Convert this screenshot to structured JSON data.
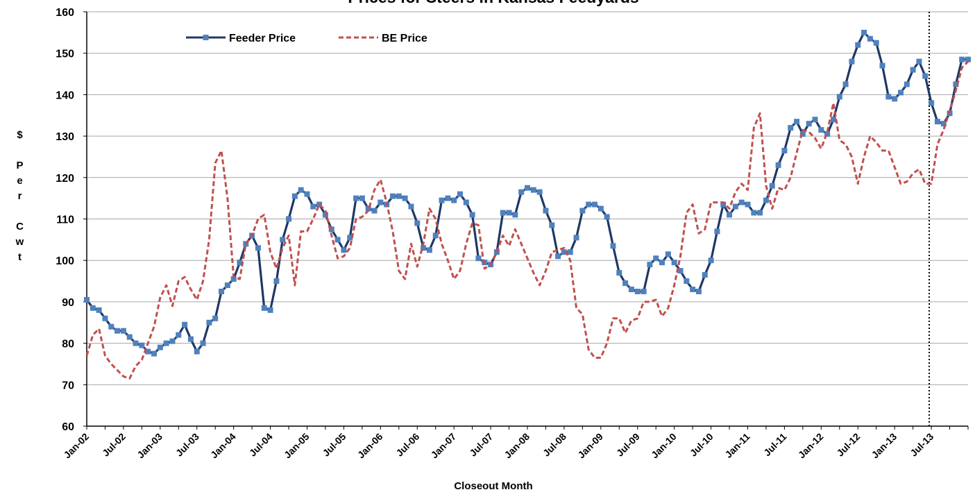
{
  "chart_data": {
    "type": "line",
    "title": "Prices for Steers in Kansas Feedyards",
    "x_label": "Closeout Month",
    "y_label": "$ Per Cwt",
    "ylim": [
      60,
      160
    ],
    "yticks": [
      60,
      70,
      80,
      90,
      100,
      110,
      120,
      130,
      140,
      150,
      160
    ],
    "grid": true,
    "legend": "top-left",
    "categories": [
      "Jan-02",
      null,
      null,
      null,
      null,
      null,
      "Jul-02",
      null,
      null,
      null,
      null,
      null,
      "Jan-03",
      null,
      null,
      null,
      null,
      null,
      "Jul-03",
      null,
      null,
      null,
      null,
      null,
      "Jan-04",
      null,
      null,
      null,
      null,
      null,
      "Jul-04",
      null,
      null,
      null,
      null,
      null,
      "Jan-05",
      null,
      null,
      null,
      null,
      null,
      "Jul-05",
      null,
      null,
      null,
      null,
      null,
      "Jan-06",
      null,
      null,
      null,
      null,
      null,
      "Jul-06",
      null,
      null,
      null,
      null,
      null,
      "Jan-07",
      null,
      null,
      null,
      null,
      null,
      "Jul-07",
      null,
      null,
      null,
      null,
      null,
      "Jan-08",
      null,
      null,
      null,
      null,
      null,
      "Jul-08",
      null,
      null,
      null,
      null,
      null,
      "Jan-09",
      null,
      null,
      null,
      null,
      null,
      "Jul-09",
      null,
      null,
      null,
      null,
      null,
      "Jan-10",
      null,
      null,
      null,
      null,
      null,
      "Jul-10",
      null,
      null,
      null,
      null,
      null,
      "Jan-11",
      null,
      null,
      null,
      null,
      null,
      "Jul-11",
      null,
      null,
      null,
      null,
      null,
      "Jan-12",
      null,
      null,
      null,
      null,
      null,
      "Jul-12",
      null,
      null,
      null,
      null,
      null,
      "Jan-13",
      null,
      null,
      null,
      null,
      null,
      "Jul-13",
      null,
      null,
      null,
      null,
      null,
      null
    ],
    "series": [
      {
        "name": "Feeder Price",
        "color": "#1f3864",
        "marker_color": "#4f81bd",
        "style": "solid",
        "values": [
          90.5,
          88.5,
          88,
          86,
          84,
          83,
          83,
          81.5,
          80,
          79.5,
          78,
          77.5,
          79,
          80,
          80.5,
          82,
          84.5,
          81,
          78,
          80,
          85,
          86,
          92.5,
          94,
          95.5,
          99.5,
          104,
          106,
          103,
          88.5,
          88,
          95,
          105,
          110,
          115.5,
          117,
          116,
          113,
          113.5,
          111,
          107.5,
          105,
          102.5,
          105.5,
          115,
          115,
          112.5,
          112,
          114,
          113.5,
          115.5,
          115.5,
          115,
          113,
          109,
          103,
          102.5,
          106,
          114.5,
          115,
          114.5,
          116,
          114,
          111,
          100.5,
          99.5,
          99,
          102,
          111.5,
          111.5,
          111,
          116.5,
          117.5,
          117,
          116.5,
          112,
          108.5,
          101,
          102,
          102,
          105.5,
          112,
          113.5,
          113.5,
          112.5,
          110.5,
          103.5,
          97,
          94.5,
          93,
          92.5,
          92.5,
          99,
          100.5,
          99.5,
          101.5,
          99.5,
          97.5,
          95,
          93,
          92.5,
          96.5,
          100,
          107,
          113.5,
          111,
          113,
          114,
          113.5,
          111.5,
          111.5,
          114.5,
          118,
          123,
          126.5,
          132,
          133.5,
          130.5,
          133,
          134,
          131.5,
          130.5,
          134,
          139.5,
          142.5,
          148,
          152,
          155,
          153.5,
          152.5,
          147,
          139.5,
          139,
          140.5,
          142.5,
          146,
          148,
          144.5,
          138,
          133.5,
          133,
          135.5,
          142.5,
          148.5,
          148.5
        ]
      },
      {
        "name": "BE Price",
        "color": "#c0504d",
        "style": "dashed",
        "values": [
          77,
          82,
          83.5,
          77,
          75,
          73.5,
          72,
          71.5,
          74.5,
          76,
          80,
          84,
          91,
          94,
          89,
          95,
          96,
          93,
          90.5,
          95,
          105,
          123.5,
          126.5,
          115,
          96,
          95.5,
          104,
          106,
          110,
          111,
          102,
          98,
          103,
          106,
          94,
          107,
          107,
          110,
          113.5,
          112,
          106,
          100.5,
          101,
          103,
          110,
          110.5,
          112,
          117,
          119.5,
          114,
          107,
          97.5,
          95.5,
          104,
          98.5,
          104,
          112.5,
          110,
          104,
          100,
          95.5,
          97.5,
          104,
          109,
          108.5,
          98,
          99,
          102,
          106,
          103.5,
          107.5,
          104,
          100.5,
          97,
          94,
          97.5,
          102,
          102.5,
          103,
          100,
          88.5,
          87,
          78.5,
          76.5,
          76.5,
          80,
          86,
          86,
          82.5,
          85.5,
          86,
          90,
          90,
          90.5,
          86.5,
          88.5,
          94,
          101,
          111.5,
          113.5,
          106.5,
          107.5,
          114,
          114,
          114,
          112.5,
          116.5,
          118.5,
          117,
          132,
          135.5,
          118,
          112.5,
          117.5,
          117,
          120,
          126,
          131.5,
          131,
          129.5,
          127,
          131,
          138,
          129,
          128,
          125,
          118.5,
          125,
          130,
          128.5,
          126.5,
          126.5,
          122.5,
          118.5,
          119,
          121,
          122,
          118.5,
          118.5,
          128,
          131.5,
          136,
          141,
          146.5,
          148
        ]
      }
    ]
  }
}
